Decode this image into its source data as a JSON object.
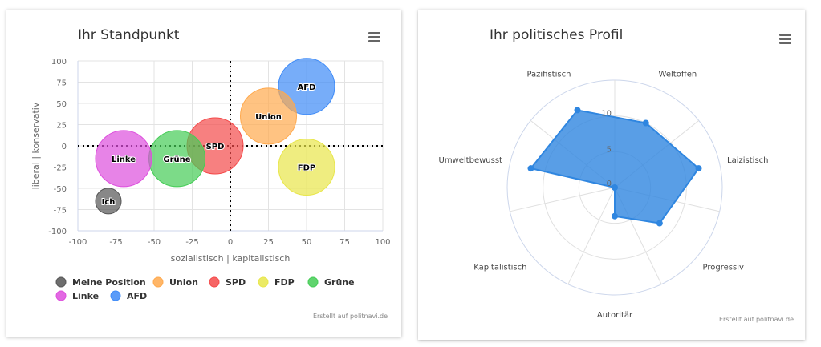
{
  "chart_data": [
    {
      "type": "bubble",
      "title": "Ihr Standpunkt",
      "xlabel": "sozialistisch | kapitalistisch",
      "ylabel": "liberal | konservativ",
      "xlim": [
        -100,
        100
      ],
      "ylim": [
        -100,
        100
      ],
      "xticks": [
        -100,
        -75,
        -50,
        -25,
        0,
        25,
        50,
        75,
        100
      ],
      "yticks": [
        -100,
        -75,
        -50,
        -25,
        0,
        25,
        50,
        75,
        100
      ],
      "grid": true,
      "legend_placement": "bottom-left",
      "series": [
        {
          "name": "Meine Position",
          "label": "Ich",
          "x": -80,
          "y": -65,
          "size": "small",
          "color": "#555555"
        },
        {
          "name": "Union",
          "label": "Union",
          "x": 25,
          "y": 35,
          "size": "large",
          "color": "#ffa94d"
        },
        {
          "name": "SPD",
          "label": "SPD",
          "x": -10,
          "y": 0,
          "size": "large",
          "color": "#f44a4a"
        },
        {
          "name": "FDP",
          "label": "FDP",
          "x": 50,
          "y": -25,
          "size": "large",
          "color": "#e8e64a"
        },
        {
          "name": "Grüne",
          "label": "Grüne",
          "x": -35,
          "y": -15,
          "size": "large",
          "color": "#44cc55"
        },
        {
          "name": "Linke",
          "label": "Linke",
          "x": -70,
          "y": -15,
          "size": "large",
          "color": "#dd4fdd"
        },
        {
          "name": "AFD",
          "label": "AFD",
          "x": 50,
          "y": 70,
          "size": "large",
          "color": "#3d8af7"
        }
      ],
      "credits": "Erstellt auf politnavi.de"
    },
    {
      "type": "radar",
      "title": "Ihr politisches Profil",
      "categories": [
        "Weltoffen",
        "Laizistisch",
        "Progressiv",
        "Autoritär",
        "Kapitalistisch",
        "Umweltbewusst",
        "Pazifistisch"
      ],
      "values": [
        10,
        12,
        8,
        4,
        0,
        12,
        12
      ],
      "ylim": [
        0,
        15
      ],
      "yticks": [
        0,
        5,
        10
      ],
      "color": "#2f86e0",
      "credits": "Erstellt auf politnavi.de"
    }
  ]
}
